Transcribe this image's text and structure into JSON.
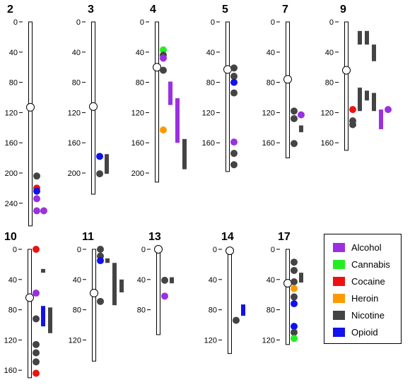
{
  "colors": {
    "Alcohol": "#9b30e0",
    "Cannabis": "#22ee22",
    "Cocaine": "#ee1111",
    "Heroin": "#ff9900",
    "Nicotine": "#444444",
    "Opioid": "#1111ee"
  },
  "legend": [
    {
      "label": "Alcohol",
      "color": "#9b30e0"
    },
    {
      "label": "Cannabis",
      "color": "#22ee22"
    },
    {
      "label": "Cocaine",
      "color": "#ee1111"
    },
    {
      "label": "Heroin",
      "color": "#ff9900"
    },
    {
      "label": "Nicotine",
      "color": "#444444"
    },
    {
      "label": "Opioid",
      "color": "#1111ee"
    }
  ],
  "chromosomes": [
    {
      "label": "2",
      "length": 270,
      "centromere": 113,
      "ticks": [
        "0",
        "40",
        "80",
        "120",
        "160",
        "200",
        "240"
      ],
      "dots": [
        {
          "trait": "Nicotine",
          "pos": 204,
          "col": 0
        },
        {
          "trait": "Cocaine",
          "pos": 220,
          "col": 0
        },
        {
          "trait": "Opioid",
          "pos": 224,
          "col": 0
        },
        {
          "trait": "Alcohol",
          "pos": 234,
          "col": 0
        },
        {
          "trait": "Alcohol",
          "pos": 250,
          "col": 0
        },
        {
          "trait": "Alcohol",
          "pos": 250,
          "col": 1
        }
      ],
      "bars": []
    },
    {
      "label": "3",
      "length": 228,
      "centromere": 112,
      "ticks": [
        "0",
        "40",
        "80",
        "120",
        "160",
        "200"
      ],
      "dots": [
        {
          "trait": "Opioid",
          "pos": 178,
          "col": 0
        },
        {
          "trait": "Nicotine",
          "pos": 201,
          "col": 0
        }
      ],
      "bars": [
        {
          "trait": "Nicotine",
          "start": 175,
          "end": 201,
          "col": 1
        }
      ]
    },
    {
      "label": "4",
      "length": 212,
      "centromere": 60,
      "ticks": [
        "0",
        "40",
        "80",
        "120",
        "160",
        "200"
      ],
      "dots": [
        {
          "trait": "Cannabis",
          "pos": 37,
          "col": 0
        },
        {
          "trait": "Nicotine",
          "pos": 44,
          "col": 0
        },
        {
          "trait": "Alcohol",
          "pos": 48,
          "col": 0
        },
        {
          "trait": "Nicotine",
          "pos": 64,
          "col": 0
        },
        {
          "trait": "Heroin",
          "pos": 143,
          "col": 0
        }
      ],
      "bars": [
        {
          "trait": "Alcohol",
          "start": 79,
          "end": 110,
          "col": 1
        },
        {
          "trait": "Alcohol",
          "start": 101,
          "end": 160,
          "col": 2
        },
        {
          "trait": "Nicotine",
          "start": 155,
          "end": 195,
          "col": 3
        }
      ]
    },
    {
      "label": "5",
      "length": 198,
      "centromere": 63,
      "ticks": [
        "0",
        "40",
        "80",
        "120",
        "160"
      ],
      "dots": [
        {
          "trait": "Nicotine",
          "pos": 61,
          "col": 0
        },
        {
          "trait": "Nicotine",
          "pos": 72,
          "col": 0
        },
        {
          "trait": "Opioid",
          "pos": 80,
          "col": 0
        },
        {
          "trait": "Nicotine",
          "pos": 94,
          "col": 0
        },
        {
          "trait": "Alcohol",
          "pos": 159,
          "col": 0
        },
        {
          "trait": "Nicotine",
          "pos": 174,
          "col": 0
        },
        {
          "trait": "Nicotine",
          "pos": 189,
          "col": 0
        }
      ],
      "bars": []
    },
    {
      "label": "7",
      "length": 180,
      "centromere": 76,
      "ticks": [
        "0",
        "40",
        "80",
        "120",
        "160"
      ],
      "dots": [
        {
          "trait": "Nicotine",
          "pos": 118,
          "col": 0
        },
        {
          "trait": "Nicotine",
          "pos": 128,
          "col": 0
        },
        {
          "trait": "Alcohol",
          "pos": 123,
          "col": 1
        },
        {
          "trait": "Nicotine",
          "pos": 161,
          "col": 0
        }
      ],
      "bars": [
        {
          "trait": "Nicotine",
          "start": 137,
          "end": 146,
          "col": 1
        }
      ]
    },
    {
      "label": "9",
      "length": 170,
      "centromere": 64,
      "ticks": [
        "0",
        "40",
        "80",
        "120",
        "160"
      ],
      "dots": [
        {
          "trait": "Cocaine",
          "pos": 116,
          "col": 0
        },
        {
          "trait": "Nicotine",
          "pos": 131,
          "col": 0
        },
        {
          "trait": "Nicotine",
          "pos": 136,
          "col": 0
        },
        {
          "trait": "Alcohol",
          "pos": 116,
          "col": 5
        }
      ],
      "bars": [
        {
          "trait": "Nicotine",
          "start": 12,
          "end": 30,
          "col": 1
        },
        {
          "trait": "Nicotine",
          "start": 12,
          "end": 30,
          "col": 2
        },
        {
          "trait": "Nicotine",
          "start": 30,
          "end": 52,
          "col": 3
        },
        {
          "trait": "Nicotine",
          "start": 87,
          "end": 118,
          "col": 1
        },
        {
          "trait": "Nicotine",
          "start": 91,
          "end": 104,
          "col": 2
        },
        {
          "trait": "Nicotine",
          "start": 94,
          "end": 118,
          "col": 3
        },
        {
          "trait": "Alcohol",
          "start": 116,
          "end": 142,
          "col": 4
        }
      ]
    },
    {
      "label": "10",
      "length": 170,
      "centromere": 64,
      "ticks": [
        "0",
        "40",
        "80",
        "120",
        "160"
      ],
      "dots": [
        {
          "trait": "Cocaine",
          "pos": 0,
          "col": 0
        },
        {
          "trait": "Alcohol",
          "pos": 58,
          "col": 0
        },
        {
          "trait": "Nicotine",
          "pos": 92,
          "col": 0
        },
        {
          "trait": "Nicotine",
          "pos": 126,
          "col": 0
        },
        {
          "trait": "Nicotine",
          "pos": 137,
          "col": 0
        },
        {
          "trait": "Nicotine",
          "pos": 149,
          "col": 0
        },
        {
          "trait": "Cocaine",
          "pos": 164,
          "col": 0
        }
      ],
      "bars": [
        {
          "trait": "Nicotine",
          "start": 26,
          "end": 31,
          "col": 1
        },
        {
          "trait": "Opioid",
          "start": 75,
          "end": 102,
          "col": 1
        },
        {
          "trait": "Nicotine",
          "start": 77,
          "end": 111,
          "col": 2
        }
      ]
    },
    {
      "label": "11",
      "length": 148,
      "centromere": 58,
      "ticks": [
        "0",
        "40",
        "80",
        "120"
      ],
      "dots": [
        {
          "trait": "Nicotine",
          "pos": 0,
          "col": 0
        },
        {
          "trait": "Nicotine",
          "pos": 9,
          "col": 0
        },
        {
          "trait": "Opioid",
          "pos": 15,
          "col": 0
        },
        {
          "trait": "Nicotine",
          "pos": 69,
          "col": 0
        }
      ],
      "bars": [
        {
          "trait": "Nicotine",
          "start": 12,
          "end": 18,
          "col": 1
        },
        {
          "trait": "Nicotine",
          "start": 18,
          "end": 74,
          "col": 2
        },
        {
          "trait": "Nicotine",
          "start": 40,
          "end": 57,
          "col": 3
        }
      ]
    },
    {
      "label": "13",
      "length": 113,
      "centromere": 0,
      "ticks": [
        "0",
        "40",
        "80"
      ],
      "dots": [
        {
          "trait": "Nicotine",
          "pos": 41,
          "col": 0
        },
        {
          "trait": "Alcohol",
          "pos": 62,
          "col": 0
        }
      ],
      "bars": [
        {
          "trait": "Nicotine",
          "start": 37,
          "end": 45,
          "col": 1
        }
      ]
    },
    {
      "label": "14",
      "length": 138,
      "centromere": 2,
      "ticks": [
        "0",
        "40",
        "80",
        "120"
      ],
      "dots": [
        {
          "trait": "Nicotine",
          "pos": 94,
          "col": 0
        }
      ],
      "bars": [
        {
          "trait": "Opioid",
          "start": 73,
          "end": 88,
          "col": 1
        }
      ]
    },
    {
      "label": "17",
      "length": 126,
      "centromere": 45,
      "ticks": [
        "0",
        "40",
        "80",
        "120"
      ],
      "dots": [
        {
          "trait": "Nicotine",
          "pos": 17,
          "col": 0
        },
        {
          "trait": "Nicotine",
          "pos": 28,
          "col": 0
        },
        {
          "trait": "Nicotine",
          "pos": 43,
          "col": 0
        },
        {
          "trait": "Heroin",
          "pos": 52,
          "col": 0
        },
        {
          "trait": "Nicotine",
          "pos": 63,
          "col": 0
        },
        {
          "trait": "Opioid",
          "pos": 72,
          "col": 0
        },
        {
          "trait": "Opioid",
          "pos": 102,
          "col": 0
        },
        {
          "trait": "Nicotine",
          "pos": 110,
          "col": 0
        },
        {
          "trait": "Cannabis",
          "pos": 118,
          "col": 0
        }
      ],
      "bars": [
        {
          "trait": "Nicotine",
          "start": 31,
          "end": 44,
          "col": 1
        }
      ]
    }
  ]
}
